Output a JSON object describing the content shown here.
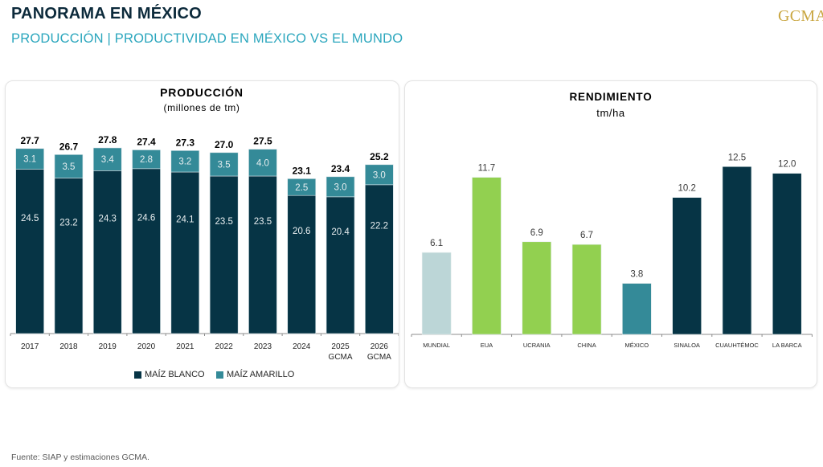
{
  "header": {
    "title": "PANORAMA EN MÉXICO",
    "subtitle": "PRODUCCIÓN | PRODUCTIVIDAD EN MÉXICO VS EL MUNDO",
    "logo": "GCMA"
  },
  "footer": {
    "source": "Fuente: SIAP y estimaciones GCMA."
  },
  "colors": {
    "dark_teal": "#063445",
    "mid_teal": "#348a98",
    "light_grey_blue": "#bcd6d7",
    "green": "#92d050",
    "title_dark": "#0c2a3b",
    "subtitle_cyan": "#2aa6bd",
    "gold": "#c9a640"
  },
  "chart_data": [
    {
      "type": "bar",
      "stacked": true,
      "title": "PRODUCCIÓN",
      "subtitle": "(millones de tm)",
      "categories": [
        "2017",
        "2018",
        "2019",
        "2020",
        "2021",
        "2022",
        "2023",
        "2024",
        "2025\nGCMA",
        "2026\nGCMA"
      ],
      "series": [
        {
          "name": "MAÍZ BLANCO",
          "color": "#063445",
          "values": [
            24.5,
            23.2,
            24.3,
            24.6,
            24.1,
            23.5,
            23.5,
            20.6,
            20.4,
            22.2
          ]
        },
        {
          "name": "MAÍZ AMARILLO",
          "color": "#348a98",
          "values": [
            3.1,
            3.5,
            3.4,
            2.8,
            3.2,
            3.5,
            4.0,
            2.5,
            3.0,
            3.0
          ]
        }
      ],
      "totals": [
        27.7,
        26.7,
        27.8,
        27.4,
        27.3,
        27.0,
        27.5,
        23.1,
        23.4,
        25.2
      ],
      "xlabel": "",
      "ylabel": "",
      "ylim": [
        0,
        28
      ],
      "grid": false,
      "legend": "bottom"
    },
    {
      "type": "bar",
      "title": "RENDIMIENTO",
      "subtitle": "tm/ha",
      "categories": [
        "MUNDIAL",
        "EUA",
        "UCRANIA",
        "CHINA",
        "MÉXICO",
        "SINALOA",
        "CUAUHTÉMOC",
        "LA BARCA"
      ],
      "values": [
        6.1,
        11.7,
        6.9,
        6.7,
        3.8,
        10.2,
        12.5,
        12.0
      ],
      "bar_colors": [
        "#bcd6d7",
        "#92d050",
        "#92d050",
        "#92d050",
        "#348a98",
        "#063445",
        "#063445",
        "#063445"
      ],
      "xlabel": "",
      "ylabel": "",
      "ylim": [
        0,
        13
      ],
      "grid": false,
      "legend": "none"
    }
  ]
}
